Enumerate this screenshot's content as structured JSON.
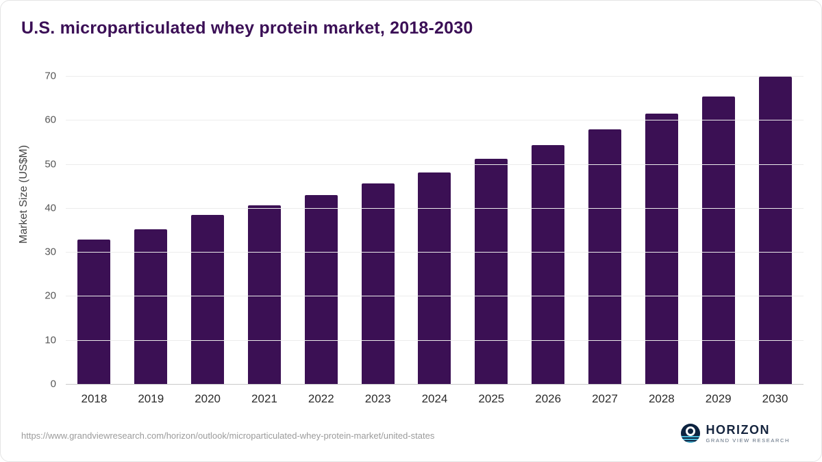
{
  "title": "U.S. microparticulated whey protein market, 2018-2030",
  "chart_data": {
    "type": "bar",
    "title": "U.S. microparticulated whey protein market, 2018-2030",
    "categories": [
      "2018",
      "2019",
      "2020",
      "2021",
      "2022",
      "2023",
      "2024",
      "2025",
      "2026",
      "2027",
      "2028",
      "2029",
      "2030"
    ],
    "values": [
      32.8,
      35.2,
      38.4,
      40.6,
      42.9,
      45.6,
      48.1,
      51.2,
      54.3,
      57.8,
      61.5,
      65.4,
      69.8
    ],
    "xlabel": "",
    "ylabel": "Market Size (US$M)",
    "ylim": [
      0,
      70
    ],
    "yticks": [
      0,
      10,
      20,
      30,
      40,
      50,
      60,
      70
    ],
    "grid": true,
    "legend": "none",
    "bar_color": "#3b1054"
  },
  "footer": {
    "source_url": "https://www.grandviewresearch.com/horizon/outlook/microparticulated-whey-protein-market/united-states",
    "logo_text": "HORIZON",
    "logo_subtext": "GRAND VIEW RESEARCH",
    "logo_icon": "horizon-circle-icon"
  },
  "colors": {
    "bar": "#3b1054",
    "title_text": "#3b0f56",
    "gridline": "#ececec",
    "axis_line": "#c9c9c9"
  }
}
